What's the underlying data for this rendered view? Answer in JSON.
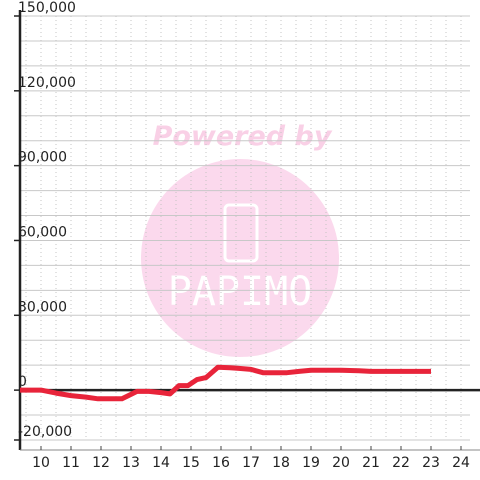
{
  "chart_data": {
    "type": "line",
    "title": "",
    "xlabel": "",
    "ylabel": "",
    "xlim": [
      9.3,
      24.3
    ],
    "ylim": [
      -20000,
      150000
    ],
    "x_ticks": [
      "10",
      "11",
      "12",
      "13",
      "14",
      "15",
      "16",
      "17",
      "18",
      "19",
      "20",
      "21",
      "22",
      "23",
      "24"
    ],
    "y_ticks": [
      "150,000",
      "120,000",
      "90,000",
      "60,000",
      "30,000",
      "0",
      "-20,000"
    ],
    "y_tick_values": [
      150000,
      120000,
      90000,
      60000,
      30000,
      0,
      -20000
    ],
    "grid": true,
    "legend": "none",
    "series": [
      {
        "color": "#e8243a",
        "points": [
          [
            9.3,
            0
          ],
          [
            10.0,
            0
          ],
          [
            10.5,
            -1200
          ],
          [
            11.0,
            -2200
          ],
          [
            11.5,
            -2800
          ],
          [
            11.9,
            -3500
          ],
          [
            12.3,
            -3500
          ],
          [
            12.7,
            -3500
          ],
          [
            13.2,
            -500
          ],
          [
            13.6,
            -500
          ],
          [
            14.0,
            -1000
          ],
          [
            14.3,
            -1500
          ],
          [
            14.6,
            1800
          ],
          [
            14.9,
            1800
          ],
          [
            15.2,
            4200
          ],
          [
            15.5,
            5000
          ],
          [
            15.9,
            9200
          ],
          [
            16.3,
            9000
          ],
          [
            16.6,
            8700
          ],
          [
            17.0,
            8300
          ],
          [
            17.4,
            7000
          ],
          [
            17.8,
            7000
          ],
          [
            18.2,
            7000
          ],
          [
            18.6,
            7500
          ],
          [
            19.0,
            8000
          ],
          [
            20.0,
            8000
          ],
          [
            20.6,
            7800
          ],
          [
            21.0,
            7500
          ],
          [
            22.0,
            7500
          ],
          [
            23.0,
            7500
          ]
        ]
      }
    ],
    "watermark": {
      "text": "Powered by",
      "logo_text": "PAPIMO"
    }
  }
}
